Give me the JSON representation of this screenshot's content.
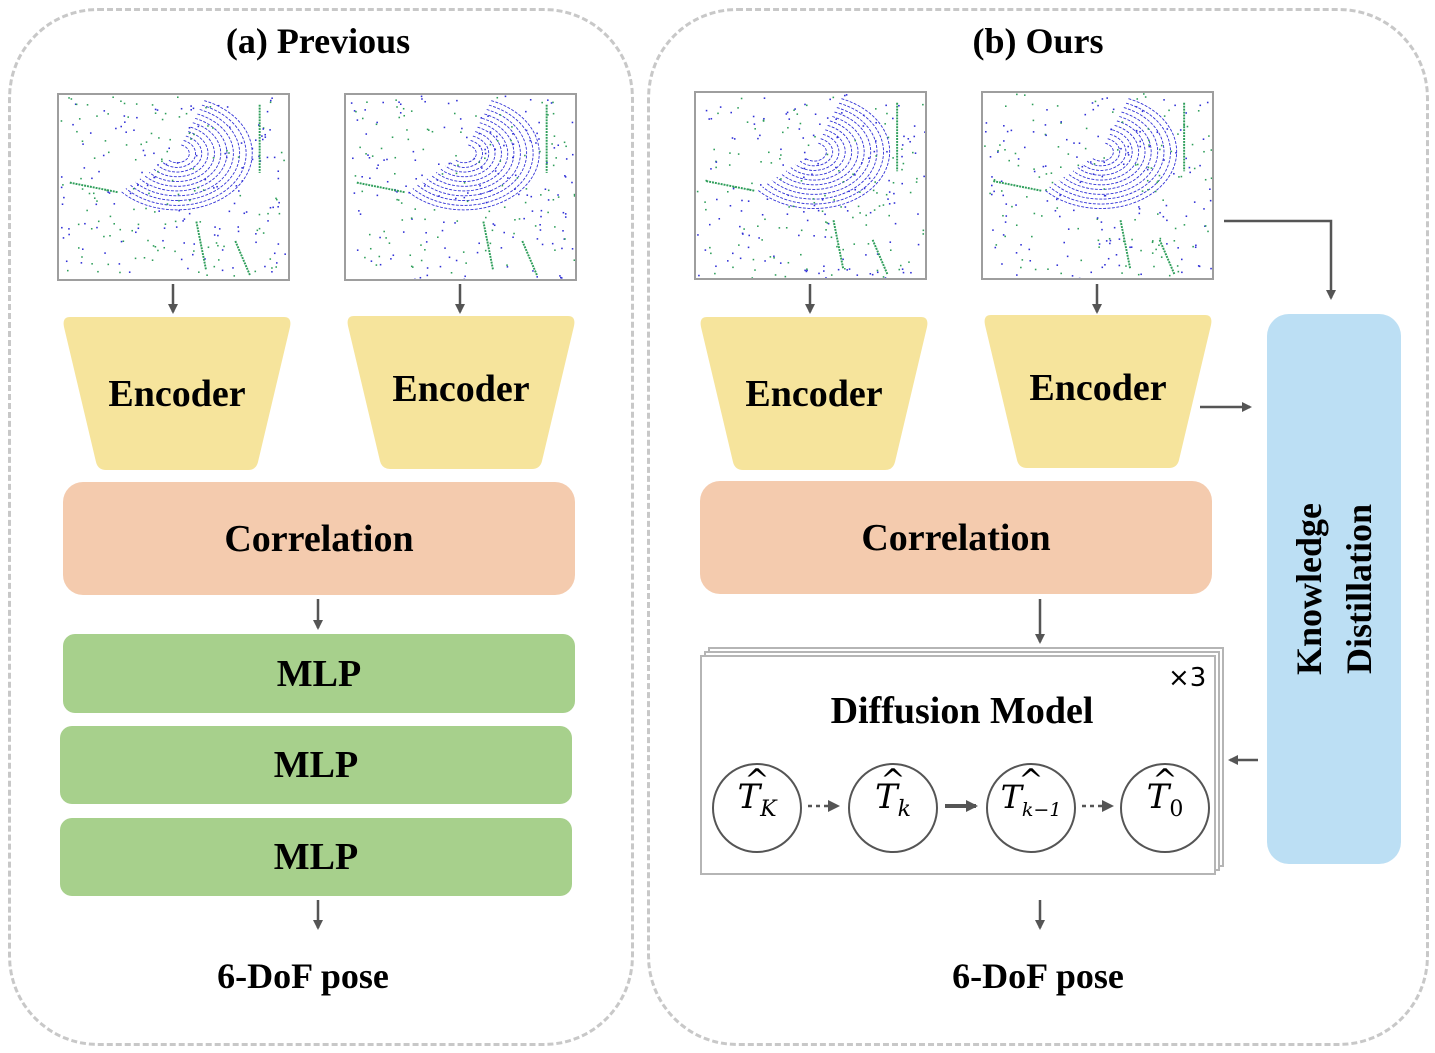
{
  "panel_a": {
    "title": "(a) Previous",
    "encoder_left": "Encoder",
    "encoder_right": "Encoder",
    "correlation": "Correlation",
    "mlp_layers": [
      "MLP",
      "MLP",
      "MLP"
    ],
    "output": "6-DoF pose"
  },
  "panel_b": {
    "title": "(b) Ours",
    "encoder_left": "Encoder",
    "encoder_right": "Encoder",
    "correlation": "Correlation",
    "diffusion_title": "Diffusion Model",
    "repeat": "×3",
    "states": [
      {
        "symbol": "T",
        "sub": "K"
      },
      {
        "symbol": "T",
        "sub": "k"
      },
      {
        "symbol": "T",
        "sub": "k−1"
      },
      {
        "symbol": "T",
        "sub": "0"
      }
    ],
    "knowledge_distillation": [
      "Knowledge",
      "Distillation"
    ],
    "output": "6-DoF pose"
  },
  "colors": {
    "encoder": "#f6e49c",
    "correlation": "#f4cbae",
    "mlp": "#a7d08c",
    "distillation": "#bcdff4",
    "arrow": "#555555",
    "lidar_blue": "#2f2fd6",
    "lidar_green": "#2e9e5a"
  },
  "icons": [
    "lidar-scan-image",
    "arrow-icon",
    "dotted-arrow-icon"
  ]
}
